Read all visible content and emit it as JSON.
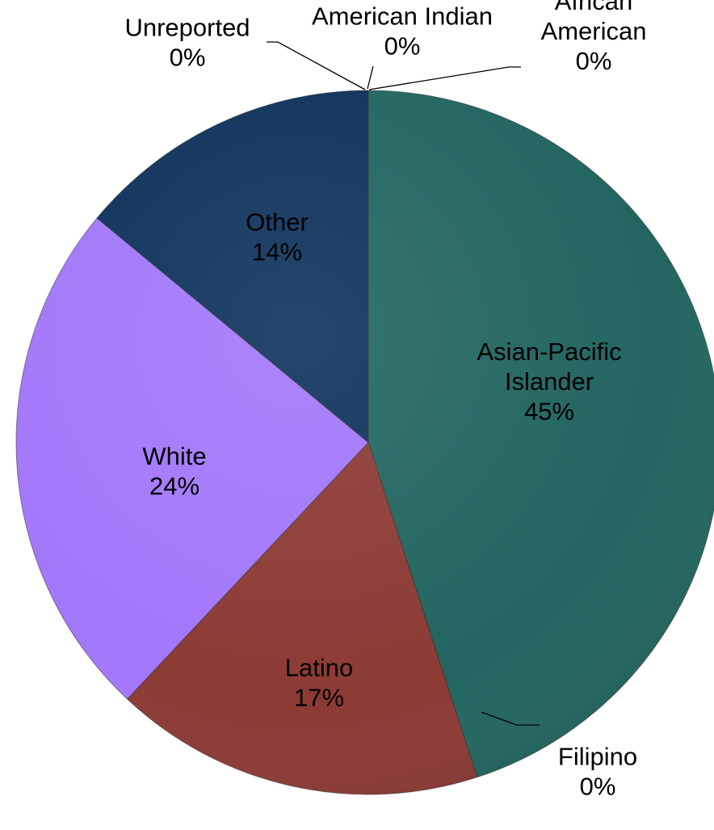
{
  "chart_data": {
    "type": "pie",
    "slices": [
      {
        "label": "Asian-Pacific Islander",
        "label_lines": [
          "Asian-Pacific",
          "Islander"
        ],
        "value": 45,
        "value_text": "45%",
        "color": "#226560"
      },
      {
        "label": "Filipino",
        "label_lines": [
          "Filipino"
        ],
        "value": 0,
        "value_text": "0%",
        "color": "#2f7a74"
      },
      {
        "label": "Latino",
        "label_lines": [
          "Latino"
        ],
        "value": 17,
        "value_text": "17%",
        "color": "#8c3a34"
      },
      {
        "label": "White",
        "label_lines": [
          "White"
        ],
        "value": 24,
        "value_text": "24%",
        "color": "#a277fa"
      },
      {
        "label": "Other",
        "label_lines": [
          "Other"
        ],
        "value": 14,
        "value_text": "14%",
        "color": "#0e325b"
      },
      {
        "label": "Unreported",
        "label_lines": [
          "Unreported"
        ],
        "value": 0,
        "value_text": "0%",
        "color": "#555555"
      },
      {
        "label": "American Indian",
        "label_lines": [
          "American Indian"
        ],
        "value": 0,
        "value_text": "0%",
        "color": "#777777"
      },
      {
        "label": "African American",
        "label_lines": [
          "African",
          "American"
        ],
        "value": 0,
        "value_text": "0%",
        "color": "#999999"
      }
    ]
  }
}
